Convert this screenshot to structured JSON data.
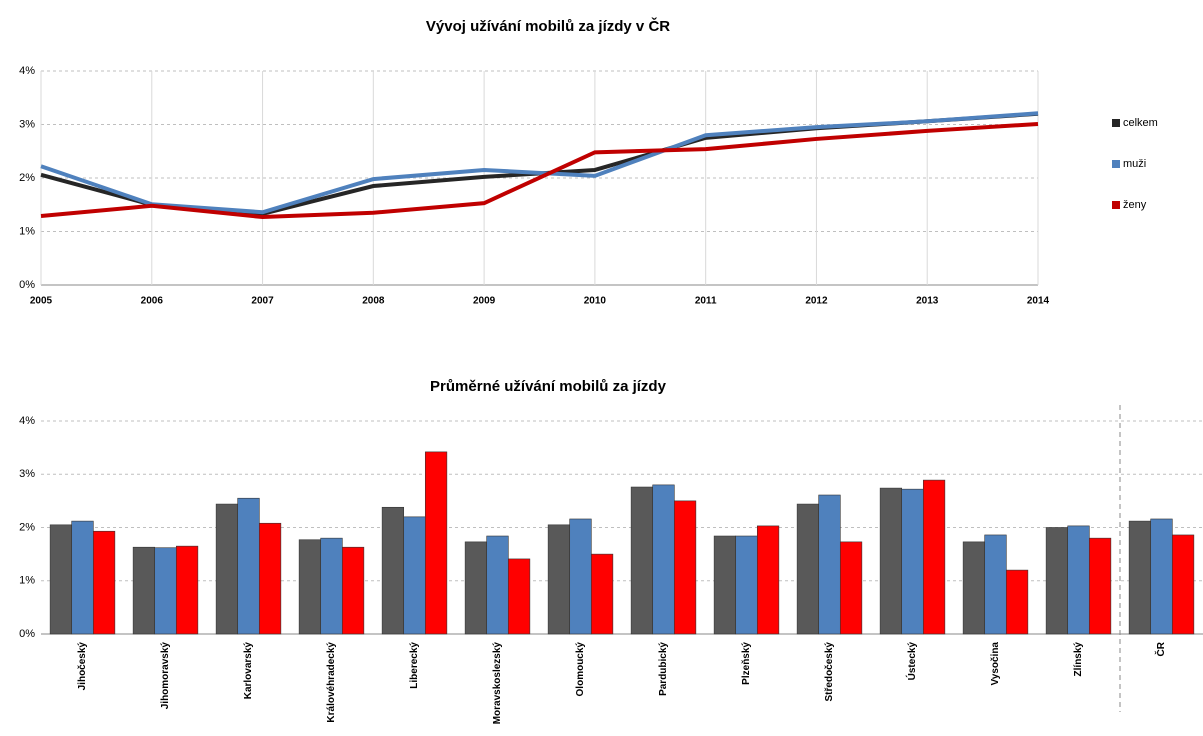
{
  "chart_data": [
    {
      "type": "line",
      "title": "Vývoj užívání mobilů za jízdy v ČR",
      "x": [
        2005,
        2006,
        2007,
        2008,
        2009,
        2010,
        2011,
        2012,
        2013,
        2014
      ],
      "xlim": [
        2005,
        2014
      ],
      "xticks": [
        2005,
        2006,
        2007,
        2008,
        2009,
        2010,
        2011,
        2012,
        2013,
        2014
      ],
      "ylim": [
        0,
        4
      ],
      "yticks": [
        {
          "value": 0,
          "label": "0%"
        },
        {
          "value": 1,
          "label": "1%"
        },
        {
          "value": 2,
          "label": "2%"
        },
        {
          "value": 3,
          "label": "3%"
        },
        {
          "value": 4,
          "label": "4%"
        }
      ],
      "grid": true,
      "legend": "right",
      "series": [
        {
          "name": "celkem",
          "color": "#262626",
          "values": [
            2.06,
            1.5,
            1.33,
            1.85,
            2.02,
            2.15,
            2.75,
            2.93,
            3.06,
            3.2
          ]
        },
        {
          "name": "muži",
          "color": "#4f81bd",
          "values": [
            2.22,
            1.51,
            1.36,
            1.98,
            2.15,
            2.04,
            2.8,
            2.95,
            3.06,
            3.21
          ]
        },
        {
          "name": "ženy",
          "color": "#c00000",
          "values": [
            1.29,
            1.48,
            1.27,
            1.35,
            1.53,
            2.48,
            2.54,
            2.73,
            2.88,
            3.01
          ]
        }
      ]
    },
    {
      "type": "bar",
      "title": "Průměrné užívání mobilů za jízdy",
      "categories": [
        "Jihočeský",
        "Jihomoravský",
        "Karlovarský",
        "Královéhradecký",
        "Liberecký",
        "Moravskoslezský",
        "Olomoucký",
        "Pardubický",
        "Plzeňský",
        "Středočeský",
        "Ústecký",
        "Vysočina",
        "Zlínský",
        "ČR"
      ],
      "ylim": [
        0,
        4
      ],
      "yticks": [
        {
          "value": 0,
          "label": "0%"
        },
        {
          "value": 1,
          "label": "1%"
        },
        {
          "value": 2,
          "label": "2%"
        },
        {
          "value": 3,
          "label": "3%"
        },
        {
          "value": 4,
          "label": "4%"
        }
      ],
      "grid": true,
      "series": [
        {
          "color": "#595959",
          "values": [
            2.05,
            1.63,
            2.44,
            1.77,
            2.38,
            1.73,
            2.05,
            2.76,
            1.84,
            2.44,
            2.74,
            1.73,
            2.0,
            2.12
          ]
        },
        {
          "color": "#4f81bd",
          "values": [
            2.12,
            1.62,
            2.55,
            1.8,
            2.2,
            1.84,
            2.16,
            2.8,
            1.84,
            2.61,
            2.72,
            1.86,
            2.03,
            2.16
          ]
        },
        {
          "color": "#ff0000",
          "values": [
            1.93,
            1.65,
            2.08,
            1.63,
            3.42,
            1.41,
            1.5,
            2.5,
            2.03,
            1.73,
            2.89,
            1.2,
            1.8,
            1.86
          ]
        }
      ]
    }
  ]
}
